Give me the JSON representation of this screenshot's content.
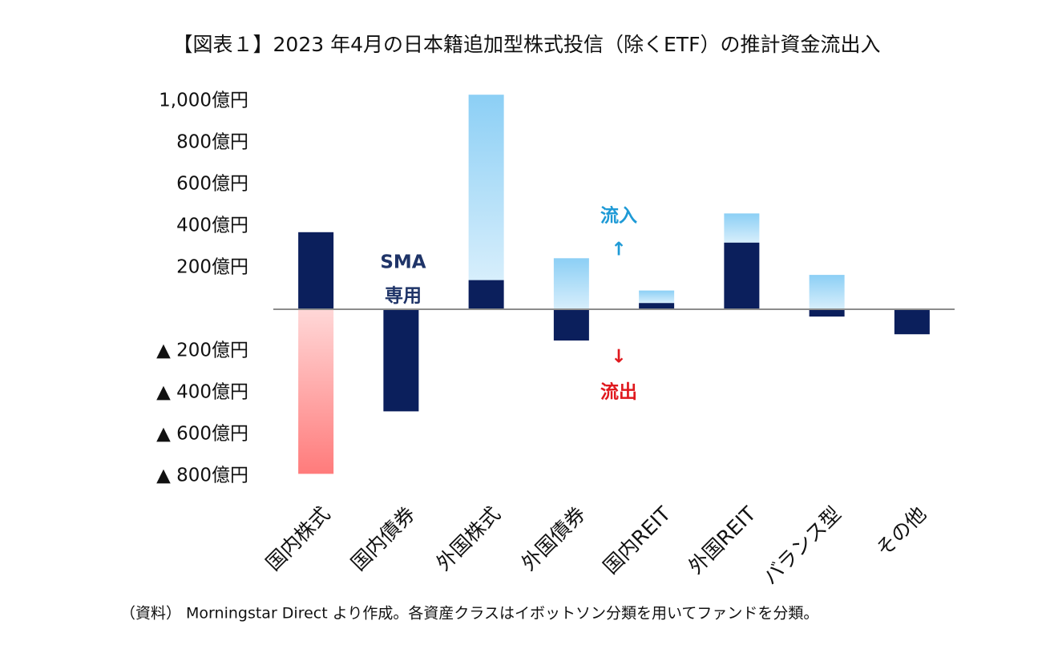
{
  "chart_data": {
    "type": "bar",
    "stacked": true,
    "title": "【図表１】2023 年4月の日本籍追加型株式投信（除くETF）の推計資金流出入",
    "note": "（資料） Morningstar Direct より作成。各資産クラスはイボットソン分類を用いてファンドを分類。",
    "categories": [
      "国内株式",
      "国内債券",
      "外国株式",
      "外国債券",
      "国内REIT",
      "外国REIT",
      "バランス型",
      "その他"
    ],
    "series": [
      {
        "color": "#0b1f5c",
        "values": [
          370,
          -490,
          140,
          -150,
          30,
          320,
          -35,
          -120
        ]
      },
      {
        "color": "#8ccff5",
        "values": [
          null,
          null,
          890,
          245,
          60,
          140,
          165,
          null
        ]
      },
      {
        "color": "#ff7b7b",
        "values": [
          -790,
          null,
          null,
          null,
          null,
          null,
          null,
          null
        ]
      }
    ],
    "ylim": [
      -850,
      1050
    ],
    "yticks": [
      {
        "value": 1000,
        "label": "1,000億円"
      },
      {
        "value": 800,
        "label": "800億円"
      },
      {
        "value": 600,
        "label": "600億円"
      },
      {
        "value": 400,
        "label": "400億円"
      },
      {
        "value": 200,
        "label": "200億円"
      },
      {
        "value": -200,
        "label": "▲ 200億円"
      },
      {
        "value": -400,
        "label": "▲ 400億円"
      },
      {
        "value": -600,
        "label": "▲ 600億円"
      },
      {
        "value": -800,
        "label": "▲ 800億円"
      }
    ],
    "annotations": [
      "SMA",
      "専用",
      "流入",
      "↑",
      "↓",
      "流出"
    ],
    "grid": false
  }
}
